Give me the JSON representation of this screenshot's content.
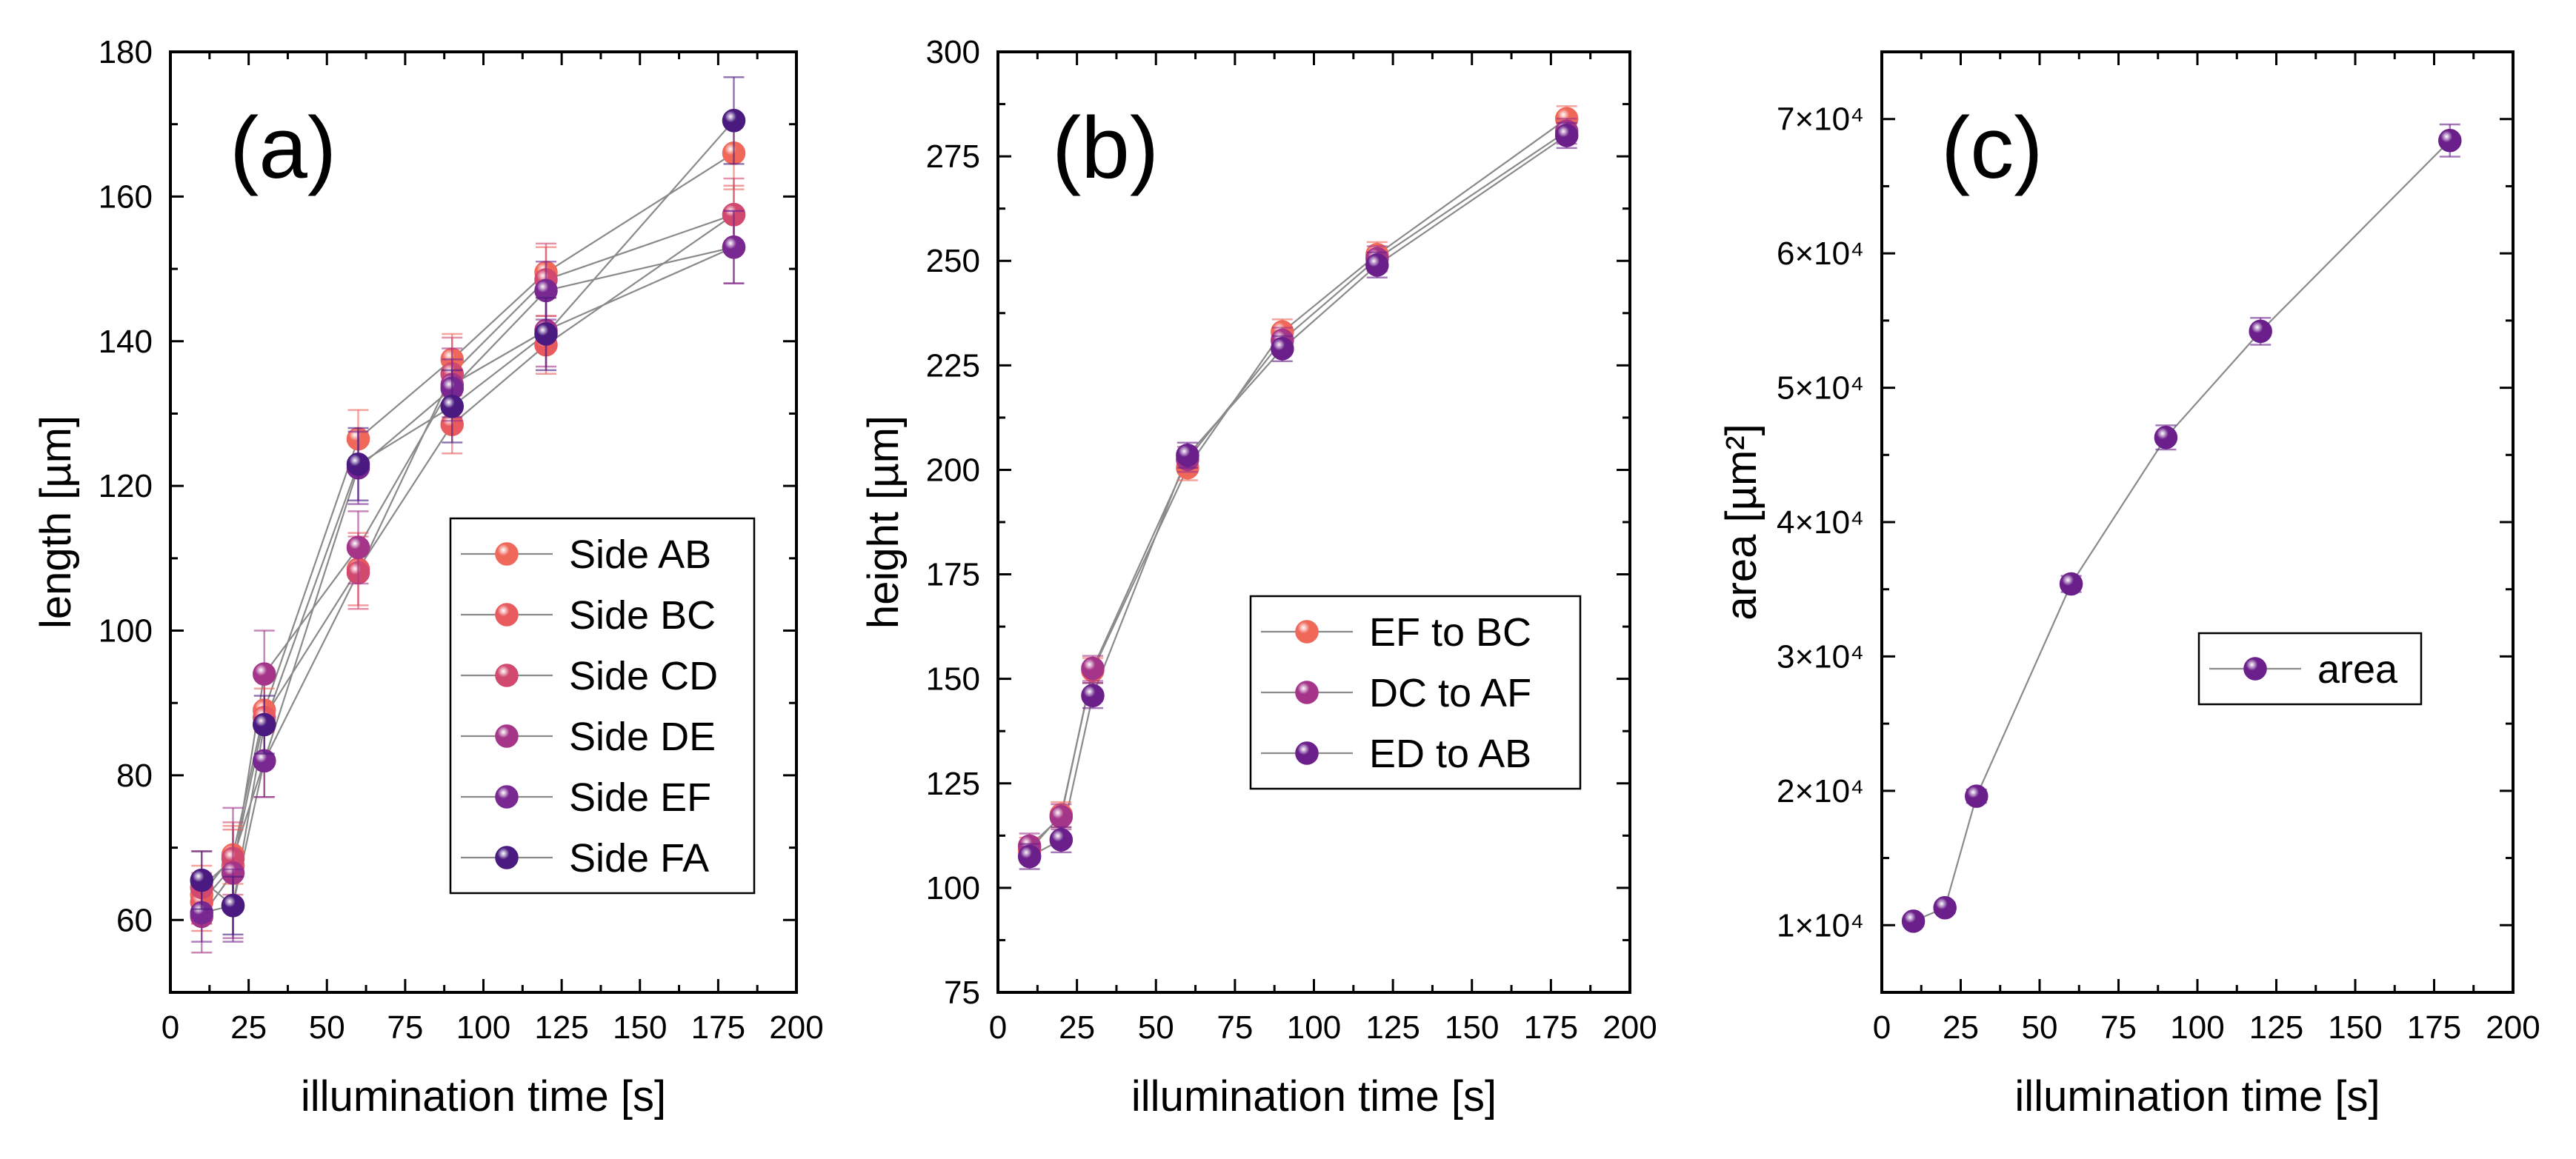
{
  "chart_data": [
    {
      "panel": "(a)",
      "type": "scatter",
      "xlabel": "illumination time [s]",
      "ylabel": "length [µm]",
      "xlim": [
        0,
        200
      ],
      "ylim": [
        50,
        180
      ],
      "xticks": [
        0,
        25,
        50,
        75,
        100,
        125,
        150,
        175,
        200
      ],
      "yticks": [
        60,
        80,
        100,
        120,
        140,
        160,
        180
      ],
      "x": [
        10,
        20,
        30,
        60,
        90,
        120,
        180
      ],
      "legend_position": "center-right",
      "series": [
        {
          "name": "Side AB",
          "color": "#f0685a",
          "values": [
            63.5,
            69,
            89,
            126.5,
            137.5,
            149.5,
            166
          ],
          "err": [
            4,
            4,
            3,
            4,
            3.5,
            3.5,
            5
          ]
        },
        {
          "name": "Side BC",
          "color": "#e95a5e",
          "values": [
            62.5,
            67.5,
            88,
            108.5,
            128.5,
            139.5,
            157.5
          ],
          "err": [
            4,
            5,
            6,
            5,
            4,
            4,
            4
          ]
        },
        {
          "name": "Side CD",
          "color": "#d1496e",
          "values": [
            64.5,
            68.5,
            82,
            108,
            135.5,
            148.5,
            157.5
          ],
          "err": [
            5,
            5,
            5,
            5,
            5,
            5,
            5
          ]
        },
        {
          "name": "Side DE",
          "color": "#a53589",
          "values": [
            60.5,
            66.5,
            94,
            111.5,
            134,
            141.5,
            153
          ],
          "err": [
            5,
            9,
            6,
            5,
            5,
            5,
            5
          ]
        },
        {
          "name": "Side EF",
          "color": "#7a2891",
          "values": [
            61,
            62,
            82,
            122.5,
            133.5,
            147,
            153
          ],
          "err": [
            4,
            5,
            5,
            5,
            4,
            4,
            5
          ]
        },
        {
          "name": "Side FA",
          "color": "#4a1a80",
          "values": [
            65.5,
            62,
            87,
            123,
            131,
            141,
            170.5
          ],
          "err": [
            4,
            4,
            4,
            5,
            5,
            5,
            6
          ]
        }
      ]
    },
    {
      "panel": "(b)",
      "type": "scatter",
      "xlabel": "illumination time [s]",
      "ylabel": "height [µm]",
      "xlim": [
        0,
        200
      ],
      "ylim": [
        75,
        300
      ],
      "xticks": [
        0,
        25,
        50,
        75,
        100,
        125,
        150,
        175,
        200
      ],
      "yticks": [
        75,
        100,
        125,
        150,
        175,
        200,
        225,
        250,
        275,
        300
      ],
      "x": [
        10,
        20,
        30,
        60,
        90,
        120,
        180
      ],
      "legend_position": "center-right",
      "series": [
        {
          "name": "EF to BC",
          "color": "#f0685a",
          "values": [
            109,
            117.5,
            152,
            200.5,
            233,
            251.5,
            284
          ],
          "err": [
            3,
            3,
            3,
            3,
            3,
            3,
            3
          ]
        },
        {
          "name": "DC to AF",
          "color": "#a53589",
          "values": [
            110,
            117,
            152.5,
            202.5,
            231,
            250.5,
            281
          ],
          "err": [
            3,
            3,
            3,
            3,
            3,
            3,
            3
          ]
        },
        {
          "name": "ED to AB",
          "color": "#6a1f8a",
          "values": [
            107.5,
            111.5,
            146,
            203.5,
            229,
            249,
            280
          ],
          "err": [
            3,
            3,
            3,
            3,
            3,
            3,
            3
          ]
        }
      ]
    },
    {
      "panel": "(c)",
      "type": "scatter",
      "xlabel": "illumination time [s]",
      "ylabel": "area [µm²]",
      "xlim": [
        0,
        200
      ],
      "ylim": [
        5000,
        75000
      ],
      "xticks": [
        0,
        25,
        50,
        75,
        100,
        125,
        150,
        175,
        200
      ],
      "yticks": [
        10000,
        20000,
        30000,
        40000,
        50000,
        60000,
        70000
      ],
      "ytick_labels": [
        "1×10⁴",
        "2×10⁴",
        "3×10⁴",
        "4×10⁴",
        "5×10⁴",
        "6×10⁴",
        "7×10⁴"
      ],
      "x": [
        10,
        20,
        30,
        60,
        90,
        120,
        180
      ],
      "legend_position": "center-right",
      "series": [
        {
          "name": "area",
          "color": "#6a1f8a",
          "values": [
            10300,
            11300,
            19600,
            35400,
            46300,
            54200,
            68400
          ],
          "err": [
            400,
            400,
            500,
            600,
            900,
            1000,
            1200
          ]
        }
      ]
    }
  ]
}
